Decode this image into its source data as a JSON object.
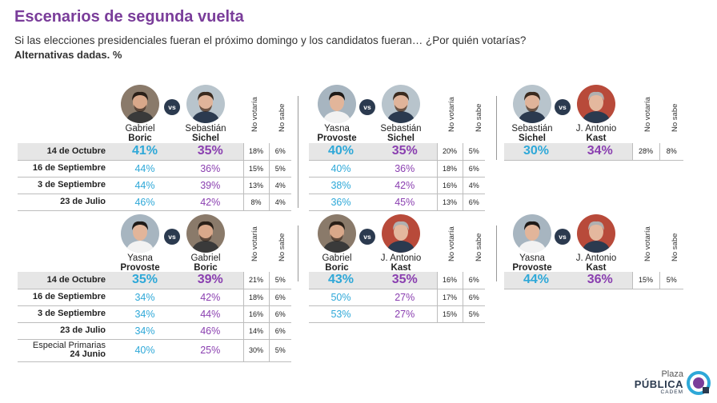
{
  "title": "Escenarios de segunda vuelta",
  "subtitle": "Si las elecciones presidenciales fueran el próximo domingo y los candidatos fueran… ¿Por quién votarías?",
  "note": "Alternativas dadas. %",
  "vs_label": "vs",
  "col_no_votaria": "No votaría",
  "col_no_sabe": "No sabe",
  "logo": {
    "line1": "Plaza",
    "line2": "PÚBLICA",
    "line3": "CADEM"
  },
  "colors": {
    "title": "#7a3d9a",
    "candidate1": "#2ea8d8",
    "candidate2": "#8a3fb0",
    "highlight_row": "#e6e6e6",
    "vs_badge": "#2b3a4f"
  },
  "chart_data": [
    {
      "type": "table",
      "candidates": [
        {
          "first": "Gabriel",
          "last": "Boric",
          "icon": "boric-portrait-icon"
        },
        {
          "first": "Sebastián",
          "last": "Sichel",
          "icon": "sichel-portrait-icon"
        }
      ],
      "rows": [
        {
          "date": "14 de Octubre",
          "c1": "41%",
          "c2": "35%",
          "nv": "18%",
          "ns": "6%"
        },
        {
          "date": "16 de Septiembre",
          "c1": "44%",
          "c2": "36%",
          "nv": "15%",
          "ns": "5%"
        },
        {
          "date": "3 de Septiembre",
          "c1": "44%",
          "c2": "39%",
          "nv": "13%",
          "ns": "4%"
        },
        {
          "date": "23 de Julio",
          "c1": "46%",
          "c2": "42%",
          "nv": "8%",
          "ns": "4%"
        }
      ]
    },
    {
      "type": "table",
      "candidates": [
        {
          "first": "Yasna",
          "last": "Provoste",
          "icon": "provoste-portrait-icon"
        },
        {
          "first": "Sebastián",
          "last": "Sichel",
          "icon": "sichel-portrait-icon"
        }
      ],
      "rows": [
        {
          "c1": "40%",
          "c2": "35%",
          "nv": "20%",
          "ns": "5%"
        },
        {
          "c1": "40%",
          "c2": "36%",
          "nv": "18%",
          "ns": "6%"
        },
        {
          "c1": "38%",
          "c2": "42%",
          "nv": "16%",
          "ns": "4%"
        },
        {
          "c1": "36%",
          "c2": "45%",
          "nv": "13%",
          "ns": "6%"
        }
      ]
    },
    {
      "type": "table",
      "candidates": [
        {
          "first": "Sebastián",
          "last": "Sichel",
          "icon": "sichel-portrait-icon"
        },
        {
          "first": "J. Antonio",
          "last": "Kast",
          "icon": "kast-portrait-icon"
        }
      ],
      "rows": [
        {
          "c1": "30%",
          "c2": "34%",
          "nv": "28%",
          "ns": "8%"
        }
      ]
    },
    {
      "type": "table",
      "candidates": [
        {
          "first": "Yasna",
          "last": "Provoste",
          "icon": "provoste-portrait-icon"
        },
        {
          "first": "Gabriel",
          "last": "Boric",
          "icon": "boric-portrait-icon"
        }
      ],
      "rows": [
        {
          "date": "14 de Octubre",
          "c1": "35%",
          "c2": "39%",
          "nv": "21%",
          "ns": "5%"
        },
        {
          "date": "16 de Septiembre",
          "c1": "34%",
          "c2": "42%",
          "nv": "18%",
          "ns": "6%"
        },
        {
          "date": "3 de Septiembre",
          "c1": "34%",
          "c2": "44%",
          "nv": "16%",
          "ns": "6%"
        },
        {
          "date": "23 de Julio",
          "c1": "34%",
          "c2": "46%",
          "nv": "14%",
          "ns": "6%"
        },
        {
          "date_line1": "Especial Primarias",
          "date_line2": "24 Junio",
          "c1": "40%",
          "c2": "25%",
          "nv": "30%",
          "ns": "5%"
        }
      ]
    },
    {
      "type": "table",
      "candidates": [
        {
          "first": "Gabriel",
          "last": "Boric",
          "icon": "boric-portrait-icon"
        },
        {
          "first": "J. Antonio",
          "last": "Kast",
          "icon": "kast-portrait-icon"
        }
      ],
      "rows": [
        {
          "c1": "43%",
          "c2": "35%",
          "nv": "16%",
          "ns": "6%"
        },
        {
          "c1": "50%",
          "c2": "27%",
          "nv": "17%",
          "ns": "6%"
        },
        {
          "c1": "53%",
          "c2": "27%",
          "nv": "15%",
          "ns": "5%"
        }
      ]
    },
    {
      "type": "table",
      "candidates": [
        {
          "first": "Yasna",
          "last": "Provoste",
          "icon": "provoste-portrait-icon"
        },
        {
          "first": "J. Antonio",
          "last": "Kast",
          "icon": "kast-portrait-icon"
        }
      ],
      "rows": [
        {
          "c1": "44%",
          "c2": "36%",
          "nv": "15%",
          "ns": "5%"
        }
      ]
    }
  ]
}
